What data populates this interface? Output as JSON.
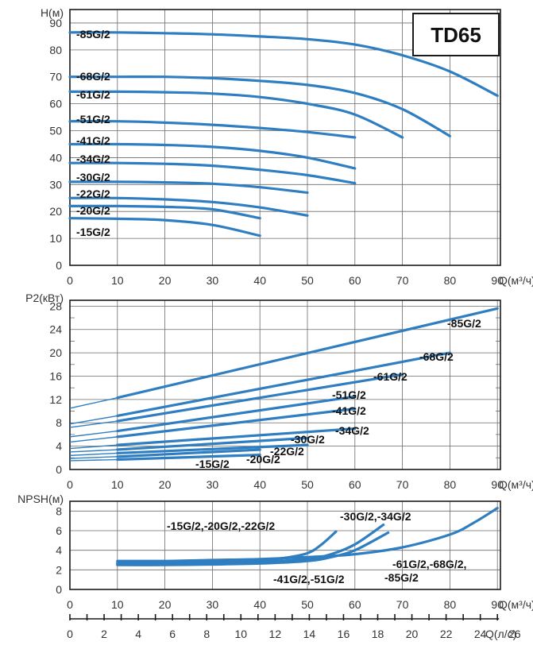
{
  "title": "TD65",
  "colors": {
    "curve": "#2f7ec1",
    "grid": "#6b6b6b",
    "frame": "#1a1a1a",
    "text": "#333333"
  },
  "chart_data": [
    {
      "id": "head",
      "type": "line",
      "ylabel": "H(м)",
      "xlabel": "Q(м³/ч)",
      "xlim": [
        0,
        90
      ],
      "ylim": [
        0,
        95
      ],
      "xticks": [
        "0",
        "10",
        "20",
        "30",
        "40",
        "50",
        "60",
        "70",
        "80",
        "90"
      ],
      "yticks": [
        "0",
        "10",
        "20",
        "30",
        "40",
        "50",
        "60",
        "70",
        "80",
        "90"
      ],
      "grid": true,
      "series": [
        {
          "name": "-85G/2",
          "x": [
            0,
            10,
            20,
            30,
            40,
            50,
            60,
            70,
            80,
            90
          ],
          "y": [
            86.5,
            86.5,
            86.2,
            85.8,
            85,
            84,
            82,
            78,
            72,
            63
          ]
        },
        {
          "name": "-68G/2",
          "x": [
            0,
            10,
            20,
            30,
            40,
            50,
            60,
            70,
            80
          ],
          "y": [
            70,
            70,
            70,
            69.5,
            68.5,
            67,
            64,
            58,
            48
          ]
        },
        {
          "name": "-61G/2",
          "x": [
            0,
            10,
            20,
            30,
            40,
            50,
            60,
            70
          ],
          "y": [
            64.5,
            64.5,
            64.3,
            63.8,
            62.5,
            60,
            56,
            47.5
          ]
        },
        {
          "name": "-51G/2",
          "x": [
            0,
            10,
            20,
            30,
            40,
            50,
            60
          ],
          "y": [
            53.5,
            53.5,
            53,
            52.2,
            51,
            49.5,
            47.5
          ]
        },
        {
          "name": "-41G/2",
          "x": [
            0,
            10,
            20,
            30,
            40,
            50,
            60
          ],
          "y": [
            45,
            45,
            44.7,
            44,
            42.5,
            40,
            36
          ]
        },
        {
          "name": "-34G/2",
          "x": [
            0,
            10,
            20,
            30,
            40,
            50,
            60
          ],
          "y": [
            38,
            38,
            37.7,
            37,
            35.5,
            33.5,
            30.5
          ]
        },
        {
          "name": "-30G/2",
          "x": [
            0,
            10,
            20,
            30,
            40,
            50
          ],
          "y": [
            31,
            31,
            30.8,
            30.3,
            29,
            27
          ]
        },
        {
          "name": "-22G/2",
          "x": [
            0,
            10,
            20,
            30,
            40,
            50
          ],
          "y": [
            25,
            25,
            24.5,
            23.5,
            21.5,
            18.5
          ]
        },
        {
          "name": "-20G/2",
          "x": [
            0,
            10,
            20,
            30,
            40
          ],
          "y": [
            22,
            22,
            21.7,
            20.8,
            17.5
          ]
        },
        {
          "name": "-15G/2",
          "x": [
            0,
            10,
            20,
            30,
            40
          ],
          "y": [
            17.5,
            17.3,
            16.8,
            15,
            11
          ]
        }
      ],
      "labels": [
        "-85G/2",
        "-68G/2",
        "-61G/2",
        "-51G/2",
        "-41G/2",
        "-34G/2",
        "-30G/2",
        "-22G/2",
        "-20G/2",
        "-15G/2"
      ]
    },
    {
      "id": "power",
      "type": "line",
      "ylabel": "P2(кВт)",
      "xlabel": "Q(м³/ч)",
      "xlim": [
        0,
        90
      ],
      "ylim": [
        0,
        29
      ],
      "xticks": [
        "0",
        "10",
        "20",
        "30",
        "40",
        "50",
        "60",
        "70",
        "80",
        "90"
      ],
      "yticks": [
        "0",
        "4",
        "8",
        "12",
        "16",
        "20",
        "24",
        "28"
      ],
      "yminor": [
        2,
        6,
        10,
        14,
        18,
        22,
        26
      ],
      "grid": true,
      "series": [
        {
          "name": "-85G/2",
          "x": [
            0,
            10,
            90
          ],
          "y": [
            10.5,
            12.3,
            27.6
          ]
        },
        {
          "name": "-68G/2",
          "x": [
            0,
            10,
            80
          ],
          "y": [
            7.8,
            9.2,
            20
          ]
        },
        {
          "name": "-61G/2",
          "x": [
            0,
            10,
            70
          ],
          "y": [
            7.2,
            8.3,
            16.3
          ]
        },
        {
          "name": "-51G/2",
          "x": [
            0,
            10,
            60
          ],
          "y": [
            5.6,
            6.6,
            12.5
          ]
        },
        {
          "name": "-41G/2",
          "x": [
            0,
            10,
            60
          ],
          "y": [
            4.7,
            5.6,
            10.4
          ]
        },
        {
          "name": "-34G/2",
          "x": [
            0,
            10,
            60
          ],
          "y": [
            3.6,
            4.2,
            7
          ]
        },
        {
          "name": "-30G/2",
          "x": [
            0,
            10,
            50
          ],
          "y": [
            3.0,
            3.4,
            5.4
          ]
        },
        {
          "name": "-22G/2",
          "x": [
            0,
            10,
            50
          ],
          "y": [
            2.4,
            2.8,
            4.2
          ]
        },
        {
          "name": "-20G/2",
          "x": [
            0,
            10,
            40
          ],
          "y": [
            1.9,
            2.2,
            3.4
          ]
        },
        {
          "name": "-15G/2",
          "x": [
            0,
            10,
            40
          ],
          "y": [
            1.5,
            1.7,
            2.5
          ]
        }
      ],
      "labels": [
        "-85G/2",
        "-68G/2",
        "-61G/2",
        "-51G/2",
        "-41G/2",
        "-34G/2",
        "-30G/2",
        "-22G/2",
        "-20G/2",
        "-15G/2"
      ]
    },
    {
      "id": "npsh",
      "type": "line",
      "ylabel": "NPSH(м)",
      "xlabel": "Q(м³/ч)",
      "xlim": [
        0,
        90
      ],
      "ylim": [
        0,
        9
      ],
      "xticks": [
        "0",
        "10",
        "20",
        "30",
        "40",
        "50",
        "60",
        "70",
        "80",
        "90"
      ],
      "yticks": [
        "0",
        "2",
        "4",
        "6",
        "8"
      ],
      "grid": true,
      "series": [
        {
          "name": "-15G/2,-20G/2,-22G/2",
          "x": [
            10,
            20,
            30,
            40,
            45,
            50,
            53,
            56
          ],
          "y": [
            2.7,
            2.7,
            2.8,
            3.0,
            3.2,
            3.7,
            4.6,
            5.9
          ]
        },
        {
          "name": "-30G/2,-34G/2",
          "x": [
            10,
            20,
            30,
            40,
            50,
            55,
            60,
            66
          ],
          "y": [
            2.6,
            2.6,
            2.7,
            2.8,
            3.1,
            3.6,
            4.6,
            6.6
          ]
        },
        {
          "name": "-41G/2,-51G/2",
          "x": [
            10,
            20,
            30,
            40,
            50,
            55,
            60,
            67
          ],
          "y": [
            2.5,
            2.5,
            2.55,
            2.65,
            2.9,
            3.3,
            4.0,
            5.8
          ]
        },
        {
          "name": "-61G/2,-68G/2,-85G/2",
          "x": [
            10,
            20,
            30,
            40,
            50,
            60,
            70,
            80,
            85,
            90
          ],
          "y": [
            2.9,
            2.9,
            3.0,
            3.1,
            3.3,
            3.6,
            4.3,
            5.6,
            6.8,
            8.3
          ]
        }
      ],
      "labels": [
        "-15G/2,-20G/2,-22G/2",
        "-30G/2,-34G/2",
        "-41G/2,-51G/2",
        "-61G/2,-68G/2,-85G/2"
      ]
    },
    {
      "id": "flow-ls",
      "type": "axis",
      "xlabel": "Q(л/с)",
      "xlim": [
        0,
        25
      ],
      "xticks": [
        "0",
        "2",
        "4",
        "6",
        "8",
        "10",
        "12",
        "14",
        "16",
        "18",
        "20",
        "22",
        "24",
        "26"
      ]
    }
  ]
}
